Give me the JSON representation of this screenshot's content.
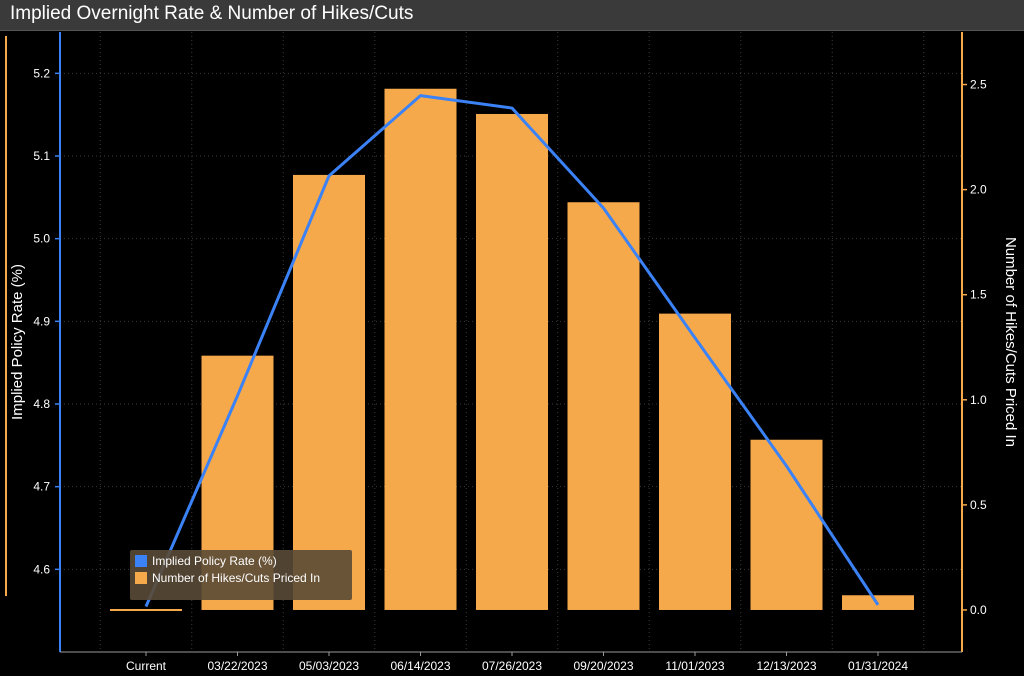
{
  "chart_data": {
    "type": "bar+line",
    "title": "Implied Overnight Rate & Number of Hikes/Cuts",
    "categories": [
      "Current",
      "03/22/2023",
      "05/03/2023",
      "06/14/2023",
      "07/26/2023",
      "09/20/2023",
      "11/01/2023",
      "12/13/2023",
      "01/31/2024"
    ],
    "series": [
      {
        "name": "Implied Policy Rate (%)",
        "kind": "line",
        "axis": "left",
        "color": "#3b82f6",
        "values": [
          4.555,
          4.81,
          5.076,
          5.173,
          5.158,
          5.037,
          4.88,
          4.725,
          4.557
        ]
      },
      {
        "name": "Number of Hikes/Cuts Priced In",
        "kind": "bar",
        "axis": "right",
        "color": "#f6a94b",
        "values": [
          0.0,
          1.21,
          2.07,
          2.48,
          2.36,
          1.94,
          1.41,
          0.81,
          0.07
        ]
      }
    ],
    "yleft": {
      "label": "Implied Policy Rate (%)",
      "ticks": [
        "4.6",
        "4.7",
        "4.8",
        "4.9",
        "5.0",
        "5.1",
        "5.2"
      ],
      "range": [
        4.5,
        5.25
      ]
    },
    "yright": {
      "label": "Number of Hikes/Cuts Priced In",
      "ticks": [
        "0.0",
        "0.5",
        "1.0",
        "1.5",
        "2.0",
        "2.5"
      ],
      "range": [
        -0.2,
        2.75
      ]
    },
    "legend": {
      "position": "bottom-left",
      "entries": [
        "Implied Policy Rate (%)",
        "Number of Hikes/Cuts Priced In"
      ]
    },
    "grid": true
  },
  "colors": {
    "background": "#000000",
    "grid": "#3a3a3a",
    "left_axis": "#3b82f6",
    "right_axis": "#f6a94b",
    "text": "#ffffff"
  }
}
